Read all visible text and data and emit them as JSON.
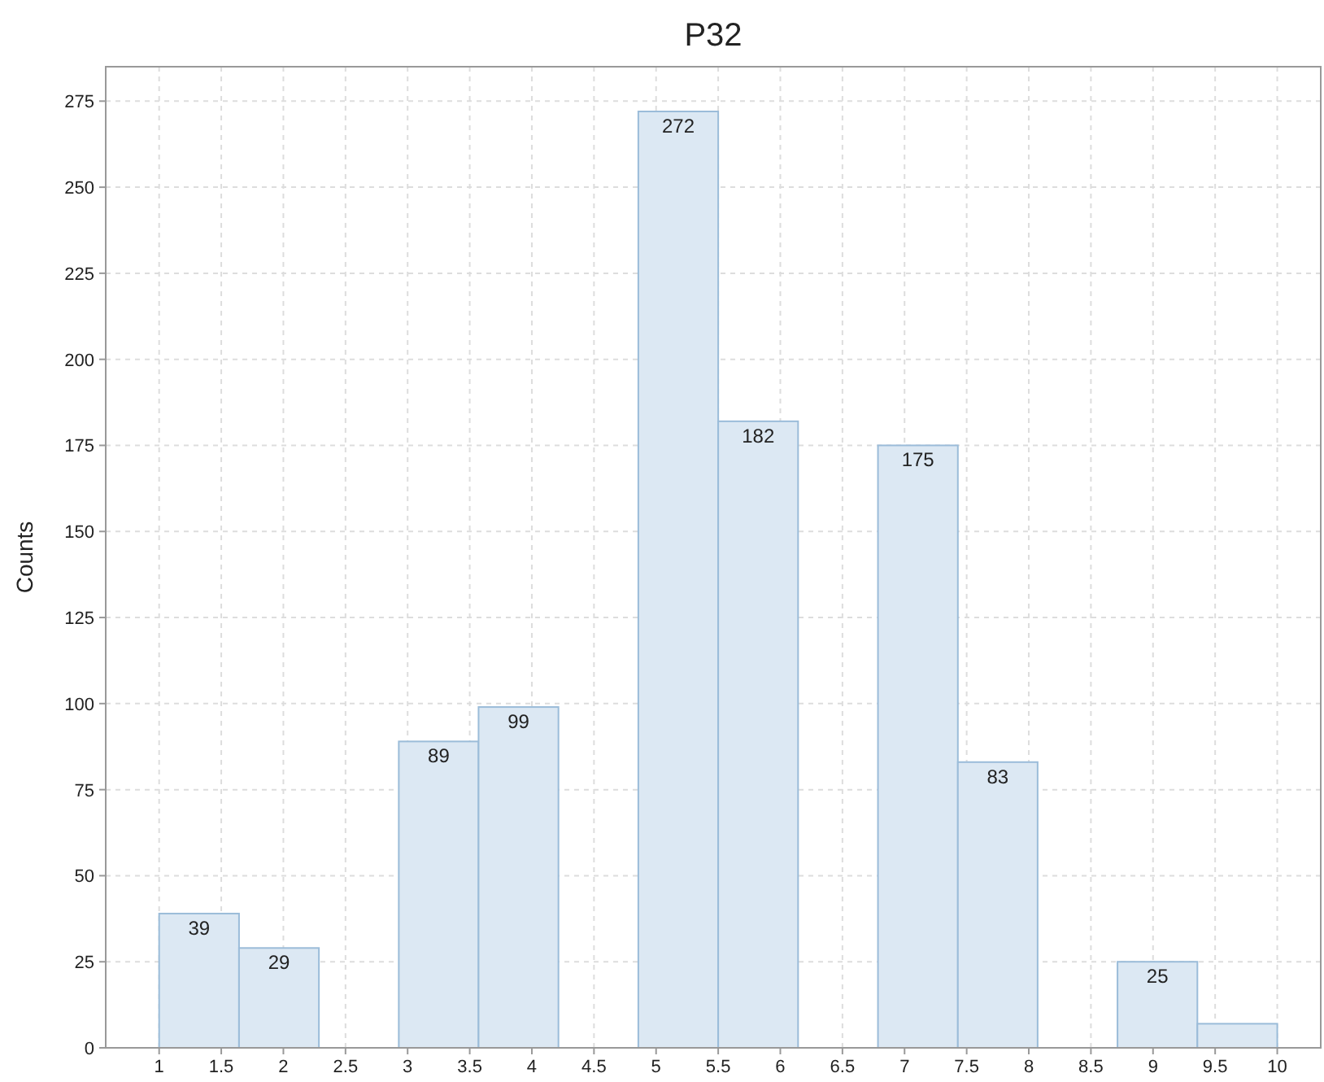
{
  "chart_data": {
    "type": "histogram",
    "title": "P32",
    "ylabel": "Counts",
    "bins": [
      1,
      1.643,
      2.286,
      2.929,
      3.571,
      4.214,
      4.857,
      5.5,
      6.143,
      6.786,
      7.429,
      8.071,
      8.714,
      9.357,
      10
    ],
    "values": [
      39,
      29,
      0,
      89,
      99,
      0,
      272,
      182,
      0,
      175,
      83,
      0,
      25,
      7
    ],
    "value_labels": [
      "39",
      "29",
      null,
      "89",
      "99",
      null,
      "272",
      "182",
      null,
      "175",
      "83",
      null,
      "25",
      null
    ],
    "color": "#dce8f3",
    "xlim": [
      0.57,
      10.35
    ],
    "xticks": [
      1,
      1.5,
      2,
      2.5,
      3,
      3.5,
      4,
      4.5,
      5,
      5.5,
      6,
      6.5,
      7,
      7.5,
      8,
      8.5,
      9,
      9.5,
      10
    ],
    "ylim": [
      0,
      285
    ],
    "yticks": [
      0,
      25,
      50,
      75,
      100,
      125,
      150,
      175,
      200,
      225,
      250,
      275
    ],
    "grid": true
  }
}
